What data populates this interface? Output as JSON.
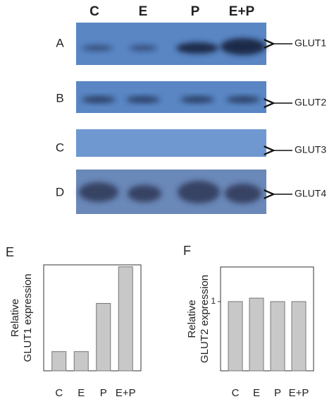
{
  "blots": {
    "lanes": [
      "C",
      "E",
      "P",
      "E+P"
    ],
    "rows": [
      {
        "row": "A",
        "protein": "GLUT1"
      },
      {
        "row": "B",
        "protein": "GLUT2"
      },
      {
        "row": "C",
        "protein": "GLUT3"
      },
      {
        "row": "D",
        "protein": "GLUT4"
      }
    ]
  },
  "chart_data": [
    {
      "type": "bar",
      "panel": "E",
      "y_label": [
        "Relative",
        "GLUT1 expression"
      ],
      "categories": [
        "C",
        "E",
        "P",
        "E+P"
      ],
      "values": [
        1,
        1,
        3.5,
        5.4
      ],
      "color": "#c8c8c8",
      "ylim": [
        0,
        5.5
      ]
    },
    {
      "type": "bar",
      "panel": "F",
      "y_label": [
        "Relative",
        "GLUT2 expression"
      ],
      "categories": [
        "C",
        "E",
        "P",
        "E+P"
      ],
      "values": [
        1,
        1.05,
        1,
        1
      ],
      "color": "#c8c8c8",
      "ylim": [
        0,
        1.5
      ],
      "yticks": [
        1
      ]
    }
  ]
}
